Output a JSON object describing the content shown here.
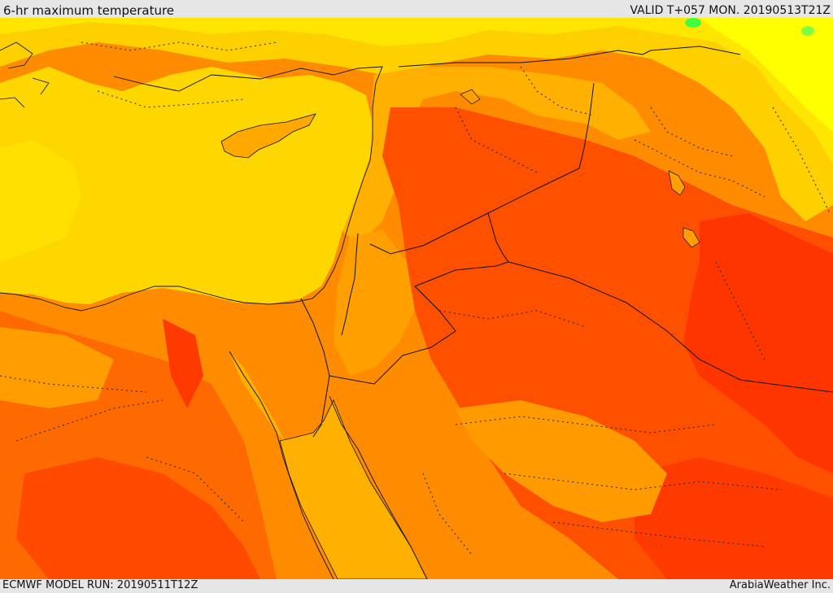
{
  "header": {
    "title": "6-hr maximum temperature",
    "valid_time": "VALID T+057 MON. 20190513T21Z"
  },
  "footer": {
    "model_run": "ECMWF MODEL RUN: 20190511T12Z",
    "credit": "ArabiaWeather Inc."
  },
  "map": {
    "palette": {
      "sea": "#ffd700",
      "hot1": "#ffb400",
      "hot2": "#ff8c00",
      "hot3": "#ff5a00",
      "hot4": "#ff3000",
      "cool1": "#ffe600",
      "cool2": "#ffff00",
      "green": "#00ff40"
    }
  }
}
